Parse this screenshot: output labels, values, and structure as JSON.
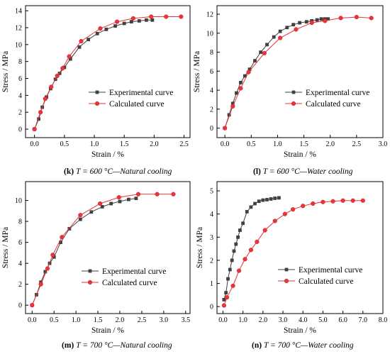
{
  "style": {
    "experimental_color": "#404040",
    "calculated_color": "#e8343a",
    "axis_color": "#000000"
  },
  "chart_data": [
    {
      "type": "line",
      "xlabel": "Strain / %",
      "ylabel": "Stress / MPa",
      "xlim": [
        -0.15,
        2.6
      ],
      "ylim": [
        -1,
        14.6
      ],
      "xticks": [
        "0.0",
        "0.5",
        "1.0",
        "1.5",
        "2.0",
        "2.5"
      ],
      "yticks": [
        "0",
        "2",
        "4",
        "6",
        "8",
        "10",
        "12",
        "14"
      ],
      "legend_position": "center-right",
      "caption": {
        "letter": "(k)",
        "temp": "T = 600 °C—Natural cooling"
      },
      "series": [
        {
          "name": "Experimental curve",
          "marker": "square",
          "x": [
            0.0,
            0.07,
            0.13,
            0.2,
            0.27,
            0.35,
            0.42,
            0.5,
            0.6,
            0.75,
            0.9,
            1.05,
            1.2,
            1.35,
            1.5,
            1.62,
            1.75,
            1.87,
            1.97
          ],
          "y": [
            0.0,
            1.2,
            2.6,
            3.8,
            4.8,
            5.9,
            6.6,
            7.3,
            8.3,
            9.7,
            10.6,
            11.3,
            11.8,
            12.2,
            12.5,
            12.7,
            12.8,
            12.9,
            12.9
          ]
        },
        {
          "name": "Calculated curve",
          "marker": "circle",
          "x": [
            0.0,
            0.1,
            0.18,
            0.28,
            0.38,
            0.47,
            0.58,
            0.78,
            1.1,
            1.38,
            1.65,
            1.95,
            2.2,
            2.45
          ],
          "y": [
            0.0,
            2.0,
            3.6,
            5.0,
            6.3,
            7.2,
            8.6,
            10.4,
            11.9,
            12.7,
            13.1,
            13.3,
            13.3,
            13.3
          ]
        }
      ]
    },
    {
      "type": "line",
      "xlabel": "Strain / %",
      "ylabel": "Stress / MPa",
      "xlim": [
        -0.15,
        3.0
      ],
      "ylim": [
        -1,
        12.9
      ],
      "xticks": [
        "0.0",
        "0.5",
        "1.0",
        "1.5",
        "2.0",
        "2.5",
        "3.0"
      ],
      "yticks": [
        "0",
        "2",
        "4",
        "6",
        "8",
        "10",
        "12"
      ],
      "legend_position": "center-right",
      "caption": {
        "letter": "(l)",
        "temp": "T = 600 °C—Water cooling"
      },
      "series": [
        {
          "name": "Experimental curve",
          "marker": "square",
          "x": [
            0.0,
            0.08,
            0.15,
            0.22,
            0.3,
            0.38,
            0.47,
            0.57,
            0.68,
            0.8,
            0.93,
            1.05,
            1.18,
            1.3,
            1.42,
            1.55,
            1.65,
            1.75,
            1.83,
            1.9,
            1.96
          ],
          "y": [
            0.0,
            1.4,
            2.6,
            3.7,
            4.8,
            5.5,
            6.2,
            7.1,
            8.0,
            8.8,
            9.6,
            10.2,
            10.6,
            10.9,
            11.1,
            11.2,
            11.3,
            11.4,
            11.5,
            11.5,
            11.5
          ]
        },
        {
          "name": "Calculated curve",
          "marker": "circle",
          "x": [
            0.0,
            0.15,
            0.3,
            0.45,
            0.75,
            1.05,
            1.35,
            1.65,
            1.9,
            2.2,
            2.5,
            2.78
          ],
          "y": [
            0.0,
            2.3,
            4.2,
            5.9,
            7.9,
            9.5,
            10.4,
            11.1,
            11.3,
            11.6,
            11.7,
            11.6
          ]
        }
      ]
    },
    {
      "type": "line",
      "xlabel": "Strain / %",
      "ylabel": "Stress / MPa",
      "xlim": [
        -0.15,
        3.6
      ],
      "ylim": [
        -0.8,
        11.8
      ],
      "xticks": [
        "0.0",
        "0.5",
        "1.0",
        "1.5",
        "2.0",
        "2.5",
        "3.0",
        "3.5"
      ],
      "yticks": [
        "0",
        "2",
        "4",
        "6",
        "8",
        "10"
      ],
      "legend_position": "center-right",
      "caption": {
        "letter": "(m)",
        "temp": "T = 700 °C—Natural cooling"
      },
      "series": [
        {
          "name": "Experimental curve",
          "marker": "square",
          "x": [
            0.0,
            0.1,
            0.2,
            0.3,
            0.4,
            0.5,
            0.65,
            0.85,
            1.1,
            1.35,
            1.6,
            1.8,
            2.0,
            2.2,
            2.37
          ],
          "y": [
            0.0,
            1.0,
            2.2,
            3.2,
            4.0,
            4.6,
            6.0,
            7.3,
            8.2,
            8.9,
            9.4,
            9.7,
            9.9,
            10.1,
            10.2
          ]
        },
        {
          "name": "Calculated curve",
          "marker": "circle",
          "x": [
            0.0,
            0.2,
            0.35,
            0.47,
            0.68,
            1.1,
            1.55,
            1.98,
            2.42,
            2.85,
            3.22
          ],
          "y": [
            0.0,
            2.0,
            3.5,
            4.8,
            6.5,
            8.6,
            9.7,
            10.3,
            10.6,
            10.6,
            10.6
          ]
        }
      ]
    },
    {
      "type": "line",
      "xlabel": "Strain / %",
      "ylabel": "Stress / MPa",
      "xlim": [
        -0.3,
        8.0
      ],
      "ylim": [
        -0.3,
        5.4
      ],
      "xticks": [
        "0.0",
        "1.0",
        "2.0",
        "3.0",
        "4.0",
        "5.0",
        "6.0",
        "7.0",
        "8.0"
      ],
      "yticks": [
        "0",
        "1",
        "2",
        "3",
        "4",
        "5"
      ],
      "legend_position": "center-right",
      "caption": {
        "letter": "(n)",
        "temp": "T = 700 °C—Water cooling"
      },
      "series": [
        {
          "name": "Experimental curve",
          "marker": "square",
          "x": [
            0.05,
            0.15,
            0.25,
            0.35,
            0.45,
            0.55,
            0.65,
            0.75,
            0.85,
            1.0,
            1.2,
            1.4,
            1.6,
            1.8,
            2.0,
            2.2,
            2.4,
            2.6,
            2.8
          ],
          "y": [
            0.3,
            0.6,
            1.2,
            1.6,
            2.0,
            2.4,
            2.7,
            3.0,
            3.3,
            3.6,
            4.1,
            4.3,
            4.45,
            4.55,
            4.6,
            4.62,
            4.65,
            4.68,
            4.7
          ]
        },
        {
          "name": "Calculated curve",
          "marker": "circle",
          "x": [
            0.05,
            0.2,
            0.5,
            0.8,
            1.1,
            1.4,
            1.7,
            2.1,
            2.6,
            3.1,
            3.5,
            4.0,
            4.5,
            5.0,
            5.5,
            6.0,
            6.5,
            7.0
          ],
          "y": [
            0.05,
            0.4,
            0.9,
            1.55,
            2.05,
            2.45,
            2.8,
            3.3,
            3.7,
            4.0,
            4.2,
            4.35,
            4.45,
            4.52,
            4.55,
            4.58,
            4.58,
            4.58
          ]
        }
      ]
    }
  ]
}
